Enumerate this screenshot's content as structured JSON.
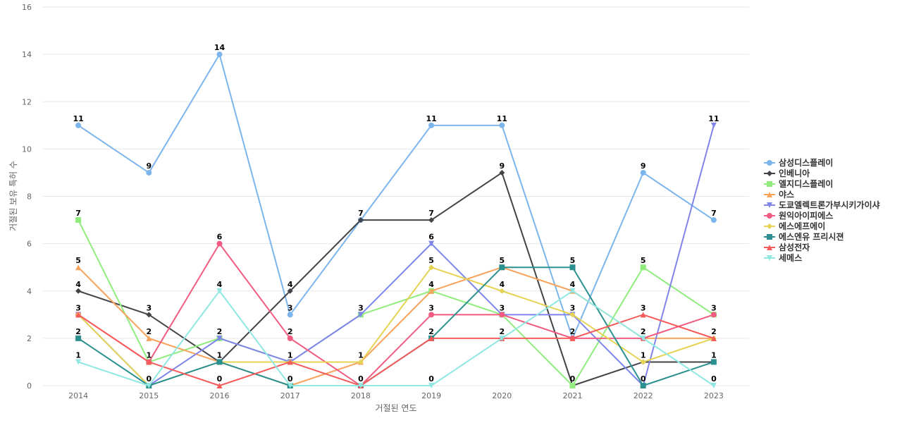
{
  "chart_data": {
    "type": "line",
    "title": "",
    "xlabel": "거절된 연도",
    "ylabel": "거절된 보유 특허 수",
    "x": [
      "2014",
      "2015",
      "2016",
      "2017",
      "2018",
      "2019",
      "2020",
      "2021",
      "2022",
      "2023"
    ],
    "ylim": [
      0,
      16
    ],
    "yticks": [
      0,
      2,
      4,
      6,
      8,
      10,
      12,
      14,
      16
    ],
    "grid": true,
    "legend_position": "right",
    "series": [
      {
        "name": "삼성디스플레이",
        "color": "#7cb5ec",
        "marker": "circle",
        "values": [
          11,
          9,
          14,
          3,
          7,
          11,
          11,
          2,
          9,
          7
        ]
      },
      {
        "name": "인베니아",
        "color": "#434348",
        "marker": "diamond",
        "values": [
          4,
          3,
          1,
          4,
          7,
          7,
          9,
          0,
          1,
          1
        ]
      },
      {
        "name": "엘지디스플레이",
        "color": "#90ed7d",
        "marker": "square",
        "values": [
          7,
          1,
          2,
          1,
          3,
          4,
          3,
          0,
          5,
          3
        ]
      },
      {
        "name": "야스",
        "color": "#f7a35c",
        "marker": "triangle",
        "values": [
          5,
          2,
          1,
          0,
          1,
          4,
          5,
          4,
          2,
          2
        ]
      },
      {
        "name": "도쿄엘렉트론가부시키가이샤",
        "color": "#8085e9",
        "marker": "triangle-down",
        "values": [
          3,
          0,
          2,
          1,
          3,
          6,
          3,
          3,
          0,
          11
        ]
      },
      {
        "name": "원익아이피에스",
        "color": "#f15c80",
        "marker": "circle",
        "values": [
          3,
          1,
          6,
          2,
          0,
          3,
          3,
          2,
          2,
          3
        ]
      },
      {
        "name": "에스에프에이",
        "color": "#e4d354",
        "marker": "diamond",
        "values": [
          3,
          0,
          1,
          1,
          1,
          5,
          4,
          3,
          1,
          2
        ]
      },
      {
        "name": "에스엔유 프리시젼",
        "color": "#2b908f",
        "marker": "square",
        "values": [
          2,
          0,
          1,
          0,
          0,
          2,
          5,
          5,
          0,
          1
        ]
      },
      {
        "name": "삼성전자",
        "color": "#f45b5b",
        "marker": "triangle",
        "values": [
          3,
          1,
          0,
          1,
          0,
          2,
          2,
          2,
          3,
          2
        ]
      },
      {
        "name": "세메스",
        "color": "#91e8e1",
        "marker": "triangle-down",
        "values": [
          1,
          0,
          4,
          0,
          0,
          0,
          2,
          4,
          2,
          0
        ]
      }
    ],
    "data_labels": [
      {
        "x": "2014",
        "values": [
          "11",
          "7",
          "5",
          "4",
          "3",
          "2",
          "1"
        ]
      },
      {
        "x": "2015",
        "values": [
          "9",
          "3",
          "2",
          "1",
          "0"
        ]
      },
      {
        "x": "2016",
        "values": [
          "14",
          "6",
          "4",
          "2",
          "1",
          "0"
        ]
      },
      {
        "x": "2017",
        "values": [
          "4",
          "3",
          "2",
          "1",
          "0"
        ]
      },
      {
        "x": "2018",
        "values": [
          "7",
          "3",
          "1",
          "0"
        ]
      },
      {
        "x": "2019",
        "values": [
          "11",
          "7",
          "6",
          "5",
          "4",
          "3",
          "2",
          "0"
        ]
      },
      {
        "x": "2020",
        "values": [
          "11",
          "9",
          "5",
          "4",
          "3",
          "2"
        ]
      },
      {
        "x": "2021",
        "values": [
          "5",
          "4",
          "3",
          "2",
          "0"
        ]
      },
      {
        "x": "2022",
        "values": [
          "9",
          "5",
          "3",
          "2",
          "1",
          "0"
        ]
      },
      {
        "x": "2023",
        "values": [
          "11",
          "7",
          "3",
          "2",
          "1",
          "0"
        ]
      }
    ]
  }
}
